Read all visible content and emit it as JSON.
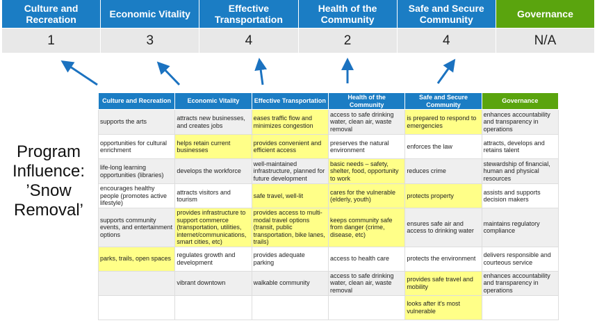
{
  "summary": {
    "columns": [
      {
        "title": "Culture and Recreation",
        "value": "1"
      },
      {
        "title": "Economic Vitality",
        "value": "3"
      },
      {
        "title": "Effective Transportation",
        "value": "4"
      },
      {
        "title": "Health of the Community",
        "value": "2"
      },
      {
        "title": "Safe and Secure Community",
        "value": "4"
      },
      {
        "title": "Governance",
        "value": "N/A"
      }
    ]
  },
  "colors": {
    "blue": "#1b7dc4",
    "green": "#5aa40e",
    "highlight": "#ffff88",
    "arrow": "#1b72c0"
  },
  "program_label": "Program Influence: ’Snow Removal’",
  "table": {
    "headers": [
      "Culture and Recreation",
      "Economic Vitality",
      "Effective Transportation",
      "Health of the Community",
      "Safe and Secure Community",
      "Governance"
    ],
    "rows": [
      [
        {
          "t": "supports the arts"
        },
        {
          "t": "attracts new businesses, and creates jobs"
        },
        {
          "t": "eases traffic flow and minimizes congestion",
          "y": true
        },
        {
          "t": "access to safe drinking water, clean air, waste removal"
        },
        {
          "t": "is prepared to respond to emergencies",
          "y": true
        },
        {
          "t": "enhances accountability and transparency in operations"
        }
      ],
      [
        {
          "t": "opportunities for cultural enrichment"
        },
        {
          "t": "helps retain current businesses",
          "y": true
        },
        {
          "t": "provides convenient and efficient access",
          "y": true
        },
        {
          "t": "preserves the natural environment"
        },
        {
          "t": "enforces the law"
        },
        {
          "t": "attracts, develops and retains talent"
        }
      ],
      [
        {
          "t": "life-long learning opportunities (libraries)"
        },
        {
          "t": "develops the workforce"
        },
        {
          "t": "well-maintained infrastructure, planned for future development"
        },
        {
          "t": "basic needs – safety, shelter, food, opportunity to work",
          "y": true
        },
        {
          "t": "reduces crime"
        },
        {
          "t": "stewardship of financial, human and physical resources"
        }
      ],
      [
        {
          "t": "encourages healthy people (promotes active lifestyle)"
        },
        {
          "t": "attracts visitors and tourism"
        },
        {
          "t": "safe travel, well-lit",
          "y": true
        },
        {
          "t": "cares for the vulnerable (elderly, youth)",
          "y": true
        },
        {
          "t": "protects property",
          "y": true
        },
        {
          "t": "assists and supports decision makers"
        }
      ],
      [
        {
          "t": "supports community events, and entertainment options"
        },
        {
          "t": "provides infrastructure to support commerce (transportation, utilities, internet/communications, smart cities, etc)",
          "y": true
        },
        {
          "t": "provides access to multi-modal travel options (transit, public transportation, bike lanes, trails)",
          "y": true
        },
        {
          "t": "keeps community safe from danger (crime, disease, etc)",
          "y": true
        },
        {
          "t": "ensures safe air and access to drinking water"
        },
        {
          "t": "maintains regulatory compliance"
        }
      ],
      [
        {
          "t": "parks, trails, open spaces",
          "y": true
        },
        {
          "t": "regulates growth and development"
        },
        {
          "t": "provides adequate parking"
        },
        {
          "t": "access to health care"
        },
        {
          "t": "protects the environment"
        },
        {
          "t": "delivers responsible and courteous service"
        }
      ],
      [
        {
          "t": ""
        },
        {
          "t": "vibrant downtown"
        },
        {
          "t": "walkable community"
        },
        {
          "t": "access to safe drinking water, clean air, waste removal"
        },
        {
          "t": "provides safe travel and mobility",
          "y": true
        },
        {
          "t": "enhances accountability and transparency in operations"
        }
      ],
      [
        {
          "t": ""
        },
        {
          "t": ""
        },
        {
          "t": ""
        },
        {
          "t": ""
        },
        {
          "t": "looks after it's most vulnerable",
          "y": true
        },
        {
          "t": ""
        }
      ]
    ]
  }
}
